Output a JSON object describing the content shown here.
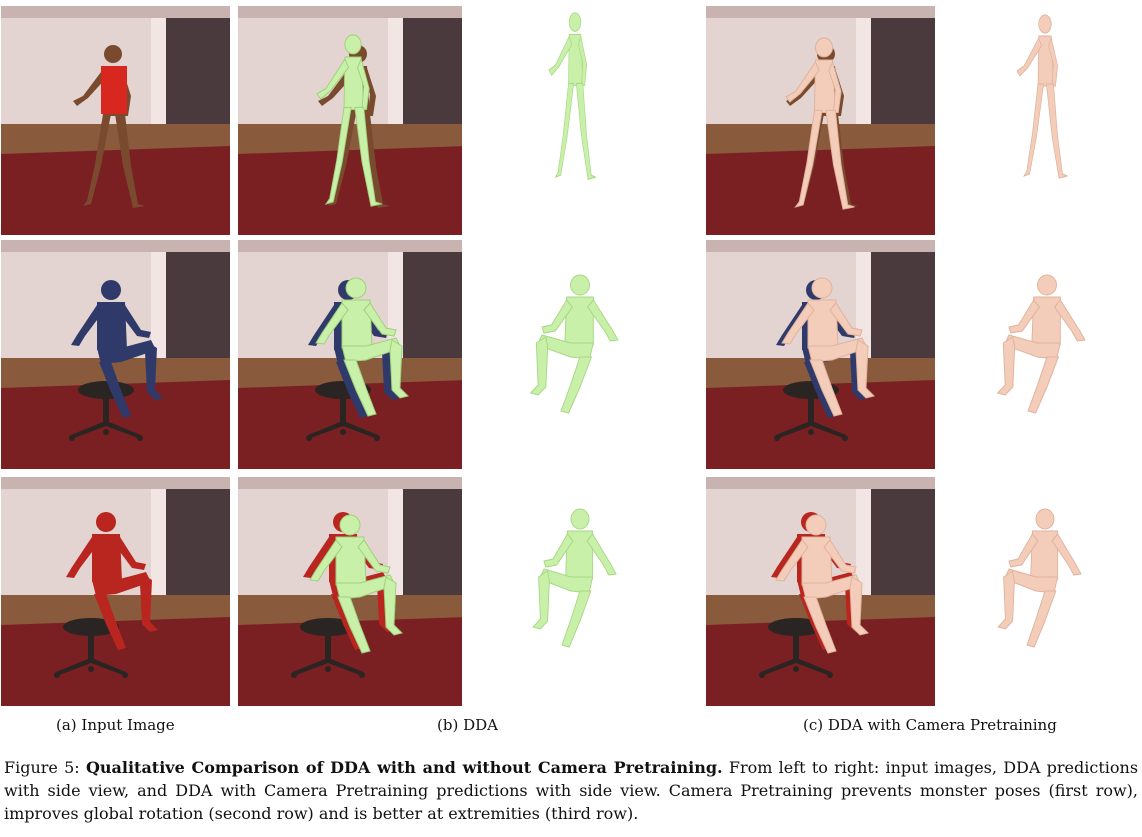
{
  "captions": {
    "a": "(a) Input Image",
    "b": "(b) DDA",
    "c": "(c) DDA with Camera Pretraining"
  },
  "figure": {
    "label": "Figure 5:",
    "title": "Qualitative Comparison of DDA with and without Camera Pretraining.",
    "body": "From left to right: input images, DDA predictions with side view, and DDA with Camera Pretraining predictions with side view. Camera Pretraining prevents monster poses (first row), improves global rotation (second row) and is better at extremities (third row)."
  },
  "colors": {
    "dda_mesh": "#c9f0a8",
    "camera_mesh": "#f3cdb9",
    "floor": "#7a1f22",
    "wall": "#e3d2cf"
  }
}
